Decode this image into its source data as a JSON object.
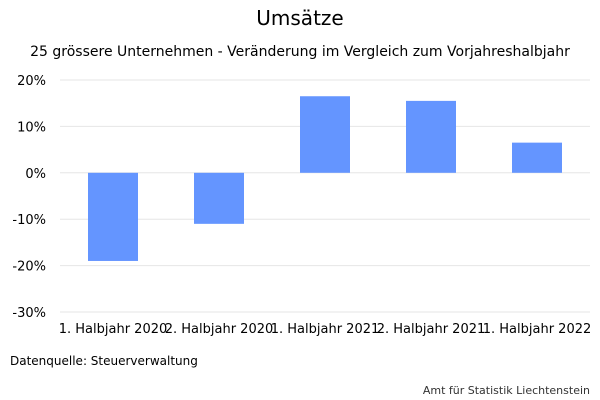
{
  "chart_data": {
    "type": "bar",
    "title": "Umsätze",
    "subtitle": "25 grössere Unternehmen - Veränderung im Vergleich zum Vorjahreshalbjahr",
    "categories": [
      "1. Halbjahr 2020",
      "2. Halbjahr 2020",
      "1. Halbjahr 2021",
      "2. Halbjahr 2021",
      "1. Halbjahr 2022"
    ],
    "values": [
      -19,
      -11,
      16.5,
      15.5,
      6.5
    ],
    "ylim": [
      -30,
      20
    ],
    "yticks": [
      20,
      10,
      0,
      -10,
      -20,
      -30
    ],
    "ytick_labels": [
      "20%",
      "10%",
      "0%",
      "-10%",
      "-20%",
      "-30%"
    ],
    "grid": true,
    "bar_color": "#6495FF",
    "grid_color": "#E6E6E6"
  },
  "footer": {
    "source": "Datenquelle: Steuerverwaltung",
    "credit": "Amt für Statistik Liechtenstein"
  }
}
